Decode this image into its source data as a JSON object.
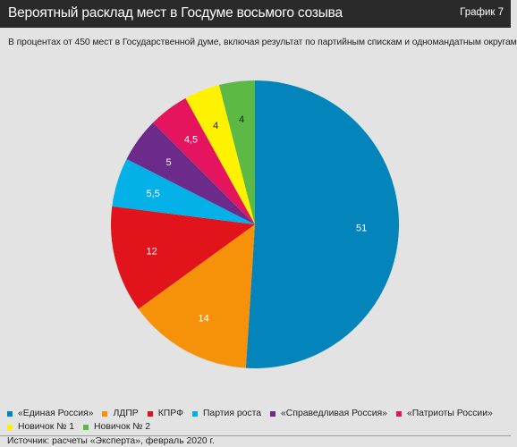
{
  "header": {
    "title": "Вероятный расклад мест в Госдуме восьмого созыва",
    "tag": "График 7"
  },
  "subtitle": "В процентах от 450 мест в Государственной думе, включая результат по партийным спискам и одномандатным округам",
  "chart_data": {
    "type": "pie",
    "title": "Вероятный расклад мест в Госдуме восьмого созыва",
    "slices": [
      {
        "name": "«Единая Россия»",
        "label": "51",
        "value": 51,
        "color": "#0385bb"
      },
      {
        "name": "ЛДПР",
        "label": "14",
        "value": 14,
        "color": "#f5920a"
      },
      {
        "name": "КПРФ",
        "label": "12",
        "value": 12,
        "color": "#e2141b"
      },
      {
        "name": "Партия роста",
        "label": "5,5",
        "value": 5.5,
        "color": "#04b0e8"
      },
      {
        "name": "«Справедливая Россия»",
        "label": "5",
        "value": 5,
        "color": "#6c2a8b"
      },
      {
        "name": "«Патриоты России»",
        "label": "4,5",
        "value": 4.5,
        "color": "#e4155c"
      },
      {
        "name": "Новичок № 1",
        "label": "4",
        "value": 4,
        "color": "#fff200"
      },
      {
        "name": "Новичок № 2",
        "label": "4",
        "value": 4,
        "color": "#5cb946"
      }
    ],
    "legend_position": "bottom"
  },
  "legend_rows": [
    [
      0,
      1,
      2,
      3,
      4,
      5
    ],
    [
      6,
      7
    ]
  ],
  "source": "Источник: расчеты «Эксперта», февраль 2020 г."
}
